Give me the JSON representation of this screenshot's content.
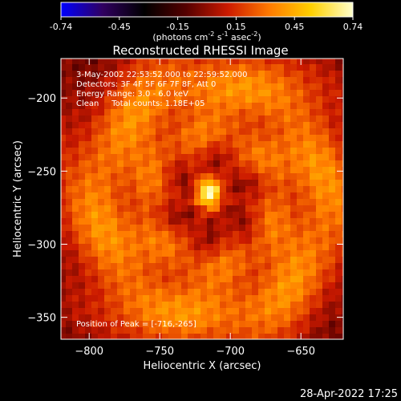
{
  "colorbar": {
    "ticks": [
      "-0.74",
      "-0.45",
      "-0.15",
      "0.15",
      "0.45",
      "0.74"
    ],
    "units_prefix": "(photons cm",
    "units_exp1": "-2",
    "units_mid": " s",
    "units_exp2": "-1",
    "units_mid2": " asec",
    "units_exp3": "-2",
    "units_suffix": ")",
    "colors": [
      "#0000ff",
      "#300060",
      "#000000",
      "#550000",
      "#cc1a00",
      "#ff7a00",
      "#ffd000",
      "#ffffcc"
    ]
  },
  "chart_data": {
    "type": "heatmap",
    "title": "Reconstructed RHESSI Image",
    "xlabel": "Heliocentric X (arcsec)",
    "ylabel": "Heliocentric Y (arcsec)",
    "xlim": [
      -820,
      -620
    ],
    "ylim": [
      -365,
      -173
    ],
    "xticks": [
      {
        "v": -800,
        "label": "−800"
      },
      {
        "v": -750,
        "label": "−750"
      },
      {
        "v": -700,
        "label": "−700"
      },
      {
        "v": -650,
        "label": "−650"
      }
    ],
    "yticks": [
      {
        "v": -200,
        "label": "−200"
      },
      {
        "v": -250,
        "label": "−250"
      },
      {
        "v": -300,
        "label": "−300"
      },
      {
        "v": -350,
        "label": "−350"
      }
    ],
    "value_range": [
      -0.74,
      0.74
    ],
    "peak": {
      "x": -716,
      "y": -265,
      "value": 0.74
    },
    "info_lines": [
      "3-May-2002 22:53:52.000 to 22:59:52.000",
      "Detectors: 3F 4F 5F 6F 7F 8F, Att 0",
      "Energy Range: 3.0 - 6.0 keV",
      "Clean     Total counts: 1.18E+05"
    ],
    "peak_label": "Position of Peak = [-716,-265]"
  },
  "timestamp": "28-Apr-2022 17:25"
}
